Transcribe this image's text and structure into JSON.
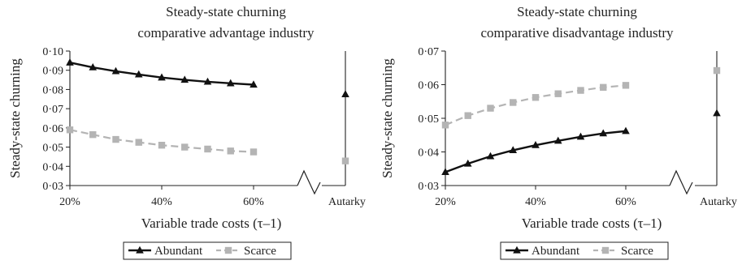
{
  "chart_data": [
    {
      "type": "line",
      "title": [
        "Steady-state churning",
        "comparative advantage industry"
      ],
      "xlabel": "Variable trade costs (τ–1)",
      "ylabel": "Steady-state churning",
      "ylim": [
        0.03,
        0.1
      ],
      "yticks": [
        "0·03",
        "0·04",
        "0·05",
        "0·06",
        "0·07",
        "0·08",
        "0·09",
        "0·10"
      ],
      "xticks": [
        "20%",
        "40%",
        "60%",
        "Autarky"
      ],
      "x": [
        0.2,
        0.25,
        0.3,
        0.35,
        0.4,
        0.45,
        0.5,
        0.55,
        0.6
      ],
      "series": [
        {
          "name": "Abundant",
          "values": [
            0.094,
            0.0915,
            0.0895,
            0.0878,
            0.0862,
            0.085,
            0.084,
            0.0832,
            0.0825
          ],
          "autarky": 0.0775,
          "color": "#111111",
          "marker": "triangle",
          "dash": false
        },
        {
          "name": "Scarce",
          "values": [
            0.059,
            0.0565,
            0.054,
            0.0525,
            0.051,
            0.05,
            0.049,
            0.048,
            0.0475
          ],
          "autarky": 0.0428,
          "color": "#b4b4b4",
          "marker": "square",
          "dash": true
        }
      ],
      "legend": "bottom"
    },
    {
      "type": "line",
      "title": [
        "Steady-state churning",
        "comparative disadvantage industry"
      ],
      "xlabel": "Variable trade costs (τ–1)",
      "ylabel": "Steady-state churning",
      "ylim": [
        0.03,
        0.07
      ],
      "yticks": [
        "0·03",
        "0·04",
        "0·05",
        "0·06",
        "0·07"
      ],
      "xticks": [
        "20%",
        "40%",
        "60%",
        "Autarky"
      ],
      "x": [
        0.2,
        0.25,
        0.3,
        0.35,
        0.4,
        0.45,
        0.5,
        0.55,
        0.6
      ],
      "series": [
        {
          "name": "Abundant",
          "values": [
            0.034,
            0.0365,
            0.0387,
            0.0405,
            0.042,
            0.0433,
            0.0445,
            0.0455,
            0.0462
          ],
          "autarky": 0.0515,
          "color": "#111111",
          "marker": "triangle",
          "dash": false
        },
        {
          "name": "Scarce",
          "values": [
            0.048,
            0.0508,
            0.053,
            0.0547,
            0.0562,
            0.0573,
            0.0583,
            0.0592,
            0.0598
          ],
          "autarky": 0.0642,
          "color": "#b4b4b4",
          "marker": "square",
          "dash": true
        }
      ],
      "legend": "bottom"
    }
  ]
}
